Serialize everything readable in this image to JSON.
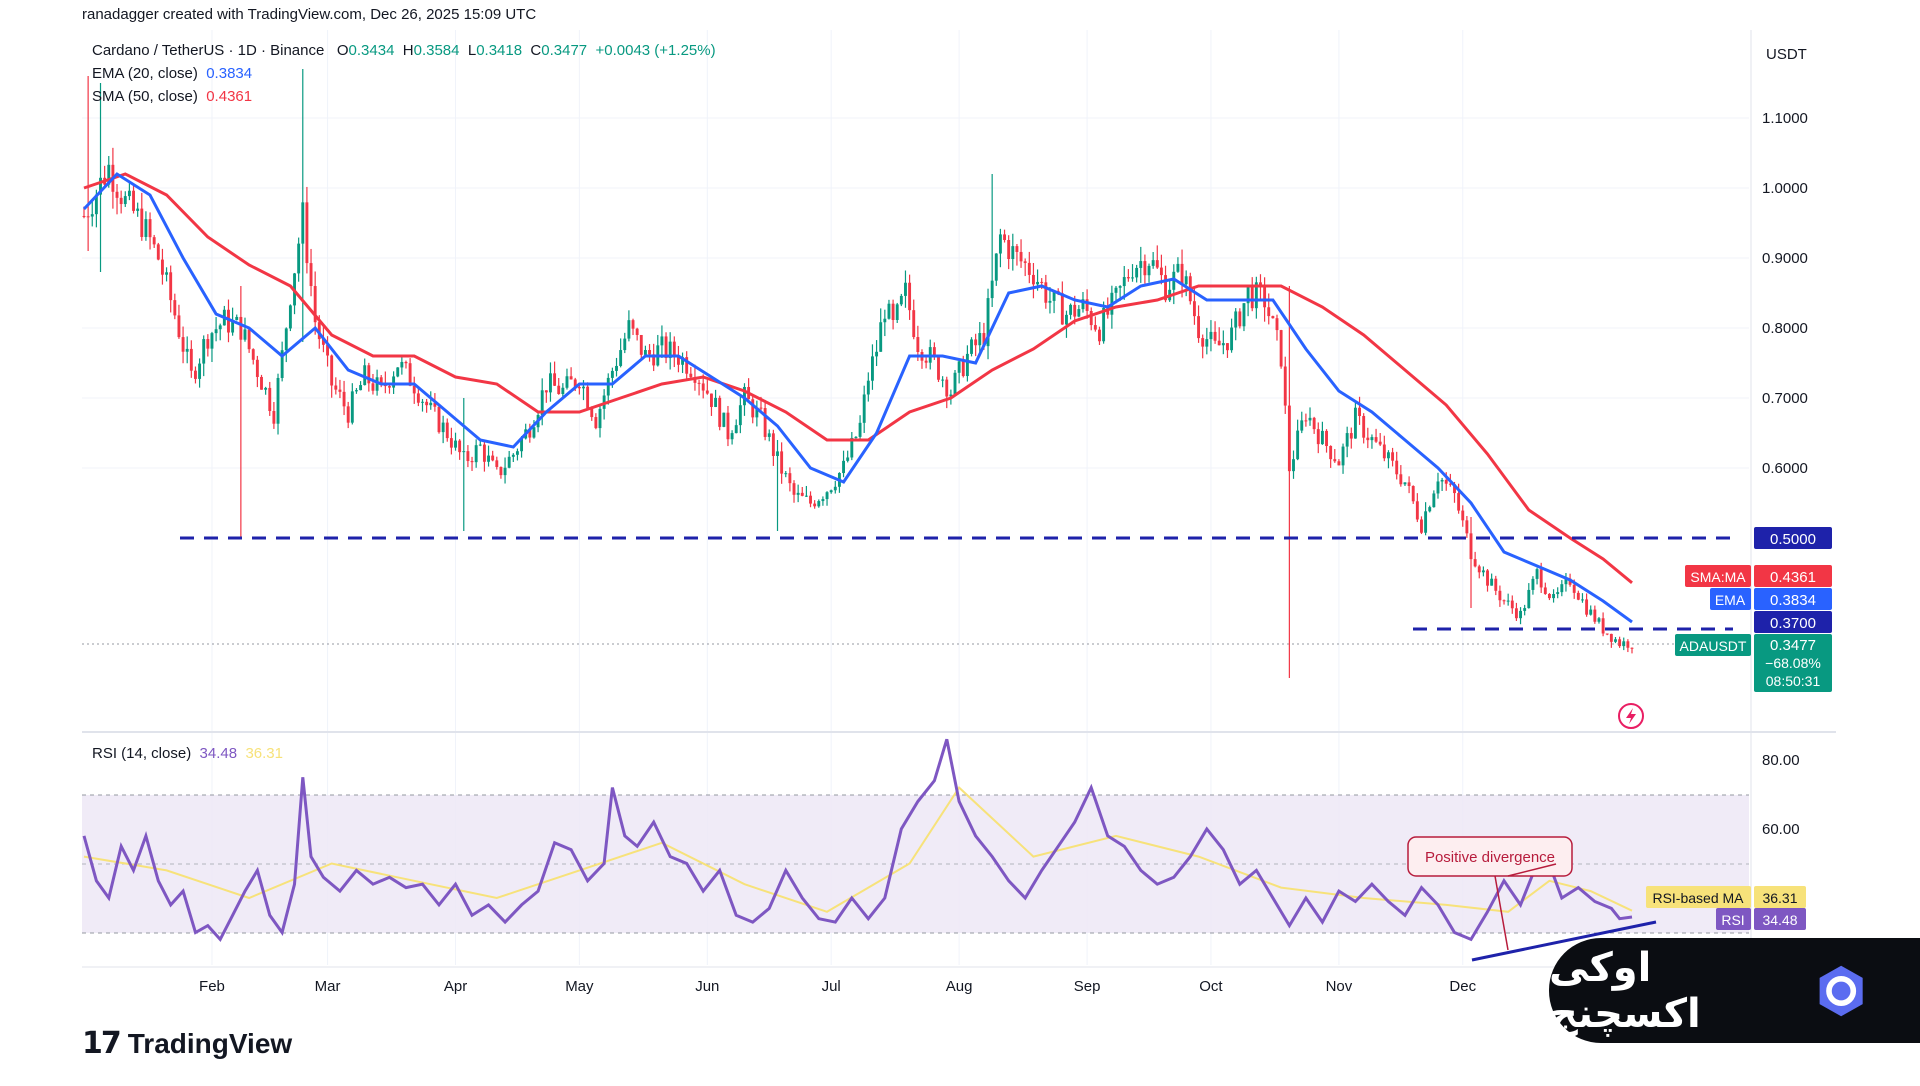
{
  "header": {
    "credit": "ranadagger created with TradingView.com, Dec 26, 2025 15:09 UTC",
    "symbol_line": "Cardano / TetherUS · 1D · Binance",
    "ohlc": {
      "o_label": "O",
      "o": "0.3434",
      "h_label": "H",
      "h": "0.3584",
      "l_label": "L",
      "l": "0.3418",
      "c_label": "C",
      "c": "0.3477",
      "change": "+0.0043 (+1.25%)"
    },
    "ema_label": "EMA (20, close)",
    "ema_value": "0.3834",
    "sma_label": "SMA (50, close)",
    "sma_value": "0.4361",
    "rsi_label": "RSI (14, close)",
    "rsi_value": "34.48",
    "rsi_ma_value": "36.31"
  },
  "colors": {
    "up": "#089981",
    "down": "#f23645",
    "ema": "#2962ff",
    "sma": "#f23645",
    "rsi": "#7e57c2",
    "rsi_ma": "#f7e27a",
    "support": "#1e22aa",
    "rsi_band": "#ede7f6"
  },
  "axis": {
    "currency": "USDT",
    "price_ticks": [
      "1.1000",
      "1.0000",
      "0.9000",
      "0.8000",
      "0.7000",
      "0.6000"
    ],
    "rsi_ticks": [
      "80.00",
      "60.00"
    ],
    "months": [
      "Feb",
      "Mar",
      "Apr",
      "May",
      "Jun",
      "Jul",
      "Aug",
      "Sep",
      "Oct",
      "Nov",
      "Dec"
    ]
  },
  "tags": {
    "level_500": "0.5000",
    "sma": {
      "name": "SMA:MA",
      "value": "0.4361"
    },
    "ema": {
      "name": "EMA",
      "value": "0.3834"
    },
    "level_370": "0.3700",
    "last": {
      "name": "ADAUSDT",
      "value": "0.3477",
      "change": "−68.08%",
      "countdown": "08:50:31"
    },
    "rsi_ma": {
      "name": "RSI-based MA",
      "value": "36.31"
    },
    "rsi": {
      "name": "RSI",
      "value": "34.48"
    }
  },
  "annotation": "Positive divergence",
  "branding": {
    "tv_logo": "17",
    "tv_name": "TradingView",
    "watermark": "اوکی اکسچنج"
  },
  "chart_data": {
    "type": "candlestick",
    "symbol": "ADAUSDT",
    "timeframe": "1D",
    "price_range": [
      0.31,
      1.18
    ],
    "rsi_range": [
      15,
      90
    ],
    "horizontal_levels": [
      0.5,
      0.37
    ],
    "months": [
      "Feb",
      "Mar",
      "Apr",
      "May",
      "Jun",
      "Jul",
      "Aug",
      "Sep",
      "Oct",
      "Nov",
      "Dec"
    ],
    "close_path": [
      [
        0,
        0.96
      ],
      [
        6,
        1.03
      ],
      [
        10,
        0.98
      ],
      [
        14,
        0.95
      ],
      [
        18,
        0.9
      ],
      [
        22,
        0.82
      ],
      [
        26,
        0.73
      ],
      [
        30,
        0.79
      ],
      [
        34,
        0.81
      ],
      [
        38,
        0.8
      ],
      [
        42,
        0.74
      ],
      [
        46,
        0.68
      ],
      [
        48,
        0.76
      ],
      [
        50,
        0.85
      ],
      [
        53,
        0.96
      ],
      [
        56,
        0.81
      ],
      [
        60,
        0.72
      ],
      [
        64,
        0.68
      ],
      [
        68,
        0.73
      ],
      [
        72,
        0.71
      ],
      [
        76,
        0.75
      ],
      [
        80,
        0.72
      ],
      [
        84,
        0.68
      ],
      [
        88,
        0.65
      ],
      [
        92,
        0.61
      ],
      [
        96,
        0.63
      ],
      [
        100,
        0.59
      ],
      [
        104,
        0.62
      ],
      [
        108,
        0.66
      ],
      [
        112,
        0.72
      ],
      [
        116,
        0.71
      ],
      [
        120,
        0.73
      ],
      [
        124,
        0.67
      ],
      [
        128,
        0.74
      ],
      [
        132,
        0.8
      ],
      [
        136,
        0.76
      ],
      [
        140,
        0.77
      ],
      [
        144,
        0.76
      ],
      [
        148,
        0.74
      ],
      [
        152,
        0.7
      ],
      [
        156,
        0.65
      ],
      [
        160,
        0.7
      ],
      [
        164,
        0.67
      ],
      [
        168,
        0.61
      ],
      [
        172,
        0.56
      ],
      [
        176,
        0.55
      ],
      [
        180,
        0.57
      ],
      [
        184,
        0.6
      ],
      [
        188,
        0.66
      ],
      [
        190,
        0.73
      ],
      [
        192,
        0.77
      ],
      [
        194,
        0.83
      ],
      [
        196,
        0.8
      ],
      [
        199,
        0.85
      ],
      [
        202,
        0.78
      ],
      [
        206,
        0.75
      ],
      [
        210,
        0.71
      ],
      [
        214,
        0.76
      ],
      [
        218,
        0.79
      ],
      [
        222,
        0.93
      ],
      [
        226,
        0.9
      ],
      [
        230,
        0.88
      ],
      [
        234,
        0.84
      ],
      [
        238,
        0.82
      ],
      [
        242,
        0.83
      ],
      [
        246,
        0.8
      ],
      [
        250,
        0.84
      ],
      [
        254,
        0.89
      ],
      [
        258,
        0.9
      ],
      [
        262,
        0.86
      ],
      [
        266,
        0.88
      ],
      [
        270,
        0.8
      ],
      [
        274,
        0.77
      ],
      [
        278,
        0.79
      ],
      [
        282,
        0.85
      ],
      [
        286,
        0.84
      ],
      [
        290,
        0.76
      ],
      [
        292,
        0.6
      ],
      [
        296,
        0.68
      ],
      [
        300,
        0.64
      ],
      [
        304,
        0.61
      ],
      [
        308,
        0.67
      ],
      [
        312,
        0.64
      ],
      [
        316,
        0.61
      ],
      [
        320,
        0.58
      ],
      [
        324,
        0.52
      ],
      [
        328,
        0.59
      ],
      [
        332,
        0.56
      ],
      [
        336,
        0.48
      ],
      [
        340,
        0.44
      ],
      [
        344,
        0.41
      ],
      [
        348,
        0.39
      ],
      [
        352,
        0.45
      ],
      [
        356,
        0.41
      ],
      [
        360,
        0.44
      ],
      [
        364,
        0.4
      ],
      [
        368,
        0.37
      ],
      [
        372,
        0.35
      ],
      [
        375,
        0.35
      ]
    ],
    "spikes": [
      {
        "day": 1,
        "high": 1.16,
        "low": 0.91
      },
      {
        "day": 4,
        "high": 1.15,
        "low": 0.88
      },
      {
        "day": 38,
        "high": 0.86,
        "low": 0.5
      },
      {
        "day": 53,
        "high": 1.17,
        "low": 0.78
      },
      {
        "day": 92,
        "high": 0.7,
        "low": 0.51
      },
      {
        "day": 168,
        "high": 0.64,
        "low": 0.51
      },
      {
        "day": 220,
        "high": 1.02,
        "low": 0.83
      },
      {
        "day": 292,
        "high": 0.86,
        "low": 0.3
      },
      {
        "day": 336,
        "high": 0.53,
        "low": 0.4
      }
    ],
    "ema_path": [
      [
        0,
        0.97
      ],
      [
        8,
        1.02
      ],
      [
        16,
        0.99
      ],
      [
        24,
        0.9
      ],
      [
        32,
        0.82
      ],
      [
        40,
        0.8
      ],
      [
        48,
        0.76
      ],
      [
        56,
        0.8
      ],
      [
        64,
        0.74
      ],
      [
        72,
        0.72
      ],
      [
        80,
        0.72
      ],
      [
        88,
        0.68
      ],
      [
        96,
        0.64
      ],
      [
        104,
        0.63
      ],
      [
        112,
        0.68
      ],
      [
        120,
        0.72
      ],
      [
        128,
        0.72
      ],
      [
        136,
        0.76
      ],
      [
        144,
        0.76
      ],
      [
        152,
        0.73
      ],
      [
        160,
        0.7
      ],
      [
        168,
        0.66
      ],
      [
        176,
        0.6
      ],
      [
        184,
        0.58
      ],
      [
        192,
        0.65
      ],
      [
        200,
        0.76
      ],
      [
        208,
        0.76
      ],
      [
        216,
        0.75
      ],
      [
        224,
        0.85
      ],
      [
        232,
        0.86
      ],
      [
        240,
        0.84
      ],
      [
        248,
        0.83
      ],
      [
        256,
        0.86
      ],
      [
        264,
        0.87
      ],
      [
        272,
        0.84
      ],
      [
        280,
        0.84
      ],
      [
        288,
        0.84
      ],
      [
        296,
        0.77
      ],
      [
        304,
        0.71
      ],
      [
        312,
        0.68
      ],
      [
        320,
        0.64
      ],
      [
        328,
        0.6
      ],
      [
        336,
        0.55
      ],
      [
        344,
        0.48
      ],
      [
        352,
        0.46
      ],
      [
        360,
        0.44
      ],
      [
        368,
        0.41
      ],
      [
        375,
        0.38
      ]
    ],
    "sma_path": [
      [
        0,
        1.0
      ],
      [
        10,
        1.02
      ],
      [
        20,
        0.99
      ],
      [
        30,
        0.93
      ],
      [
        40,
        0.89
      ],
      [
        50,
        0.86
      ],
      [
        60,
        0.79
      ],
      [
        70,
        0.76
      ],
      [
        80,
        0.76
      ],
      [
        90,
        0.73
      ],
      [
        100,
        0.72
      ],
      [
        110,
        0.68
      ],
      [
        120,
        0.68
      ],
      [
        130,
        0.7
      ],
      [
        140,
        0.72
      ],
      [
        150,
        0.73
      ],
      [
        160,
        0.71
      ],
      [
        170,
        0.68
      ],
      [
        180,
        0.64
      ],
      [
        190,
        0.64
      ],
      [
        200,
        0.68
      ],
      [
        210,
        0.7
      ],
      [
        220,
        0.74
      ],
      [
        230,
        0.77
      ],
      [
        240,
        0.81
      ],
      [
        250,
        0.83
      ],
      [
        260,
        0.84
      ],
      [
        270,
        0.86
      ],
      [
        280,
        0.86
      ],
      [
        290,
        0.86
      ],
      [
        300,
        0.83
      ],
      [
        310,
        0.79
      ],
      [
        320,
        0.74
      ],
      [
        330,
        0.69
      ],
      [
        340,
        0.62
      ],
      [
        350,
        0.54
      ],
      [
        360,
        0.5
      ],
      [
        368,
        0.47
      ],
      [
        375,
        0.436
      ]
    ],
    "rsi_path": [
      [
        0,
        58
      ],
      [
        3,
        45
      ],
      [
        6,
        40
      ],
      [
        9,
        55
      ],
      [
        12,
        48
      ],
      [
        15,
        58
      ],
      [
        18,
        45
      ],
      [
        21,
        38
      ],
      [
        24,
        42
      ],
      [
        27,
        30
      ],
      [
        30,
        32
      ],
      [
        33,
        28
      ],
      [
        36,
        35
      ],
      [
        39,
        42
      ],
      [
        42,
        48
      ],
      [
        45,
        35
      ],
      [
        48,
        30
      ],
      [
        51,
        44
      ],
      [
        53,
        75
      ],
      [
        55,
        52
      ],
      [
        58,
        46
      ],
      [
        62,
        42
      ],
      [
        66,
        48
      ],
      [
        70,
        44
      ],
      [
        74,
        46
      ],
      [
        78,
        43
      ],
      [
        82,
        44
      ],
      [
        86,
        38
      ],
      [
        90,
        44
      ],
      [
        94,
        35
      ],
      [
        98,
        38
      ],
      [
        102,
        33
      ],
      [
        106,
        38
      ],
      [
        110,
        42
      ],
      [
        114,
        56
      ],
      [
        118,
        54
      ],
      [
        122,
        45
      ],
      [
        126,
        50
      ],
      [
        128,
        72
      ],
      [
        131,
        58
      ],
      [
        134,
        55
      ],
      [
        138,
        62
      ],
      [
        142,
        52
      ],
      [
        146,
        50
      ],
      [
        150,
        42
      ],
      [
        154,
        48
      ],
      [
        158,
        35
      ],
      [
        162,
        33
      ],
      [
        166,
        37
      ],
      [
        170,
        48
      ],
      [
        174,
        40
      ],
      [
        178,
        34
      ],
      [
        182,
        33
      ],
      [
        186,
        40
      ],
      [
        190,
        34
      ],
      [
        194,
        40
      ],
      [
        198,
        60
      ],
      [
        202,
        68
      ],
      [
        206,
        74
      ],
      [
        209,
        86
      ],
      [
        212,
        68
      ],
      [
        216,
        58
      ],
      [
        220,
        52
      ],
      [
        224,
        45
      ],
      [
        228,
        40
      ],
      [
        232,
        48
      ],
      [
        236,
        55
      ],
      [
        240,
        62
      ],
      [
        244,
        72
      ],
      [
        248,
        58
      ],
      [
        252,
        55
      ],
      [
        256,
        48
      ],
      [
        260,
        44
      ],
      [
        264,
        46
      ],
      [
        268,
        52
      ],
      [
        272,
        60
      ],
      [
        276,
        54
      ],
      [
        280,
        44
      ],
      [
        284,
        48
      ],
      [
        288,
        40
      ],
      [
        292,
        32
      ],
      [
        296,
        40
      ],
      [
        300,
        33
      ],
      [
        304,
        42
      ],
      [
        308,
        39
      ],
      [
        312,
        44
      ],
      [
        316,
        39
      ],
      [
        320,
        35
      ],
      [
        324,
        43
      ],
      [
        328,
        38
      ],
      [
        332,
        30
      ],
      [
        336,
        28
      ],
      [
        340,
        36
      ],
      [
        344,
        45
      ],
      [
        348,
        38
      ],
      [
        352,
        50
      ],
      [
        354,
        53
      ],
      [
        358,
        40
      ],
      [
        362,
        43
      ],
      [
        366,
        39
      ],
      [
        370,
        37
      ],
      [
        372,
        34
      ],
      [
        375,
        34.5
      ]
    ],
    "rsi_ma_path": [
      [
        0,
        52
      ],
      [
        20,
        48
      ],
      [
        40,
        40
      ],
      [
        60,
        50
      ],
      [
        80,
        45
      ],
      [
        100,
        40
      ],
      [
        120,
        48
      ],
      [
        140,
        56
      ],
      [
        160,
        44
      ],
      [
        180,
        36
      ],
      [
        200,
        50
      ],
      [
        212,
        72
      ],
      [
        230,
        52
      ],
      [
        250,
        58
      ],
      [
        270,
        52
      ],
      [
        290,
        43
      ],
      [
        310,
        40
      ],
      [
        330,
        38
      ],
      [
        345,
        36
      ],
      [
        355,
        45
      ],
      [
        365,
        42
      ],
      [
        375,
        36.31
      ]
    ],
    "divergence": {
      "label": "Positive divergence",
      "days": [
        332,
        354
      ]
    }
  }
}
